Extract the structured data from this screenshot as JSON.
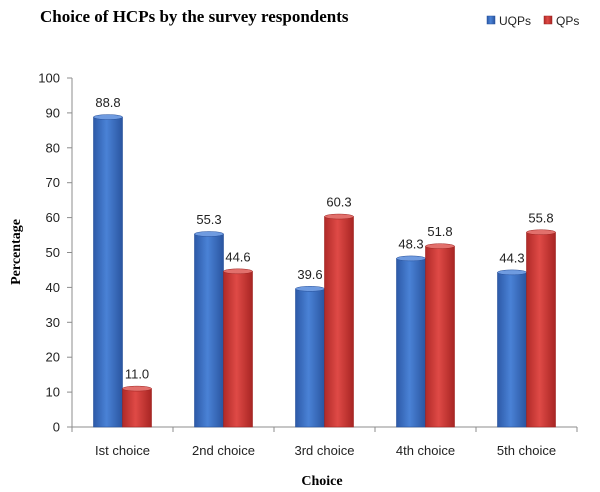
{
  "chart_data": {
    "type": "bar",
    "title": "Choice of HCPs by the survey respondents",
    "xlabel": "Choice",
    "ylabel": "Percentage",
    "categories": [
      "Ist choice",
      "2nd choice",
      "3rd choice",
      "4th choice",
      "5th choice"
    ],
    "series": [
      {
        "name": "UQPs",
        "values": [
          88.8,
          55.3,
          39.6,
          48.3,
          44.3
        ],
        "color": "#3f73c6",
        "data_labels": [
          "88.8",
          "55.3",
          "39.6",
          "48.3",
          "44.3"
        ]
      },
      {
        "name": "QPs",
        "values": [
          11.0,
          44.6,
          60.3,
          51.8,
          55.8
        ],
        "color": "#cf3a37",
        "data_labels": [
          "11.0",
          "44.6",
          "60.3",
          "51.8",
          "55.8"
        ]
      }
    ],
    "ylim": [
      0,
      100
    ],
    "yticks": [
      "0",
      "10",
      "20",
      "30",
      "40",
      "50",
      "60",
      "70",
      "80",
      "90",
      "100"
    ],
    "grid": false,
    "legend_position": "top-right"
  }
}
